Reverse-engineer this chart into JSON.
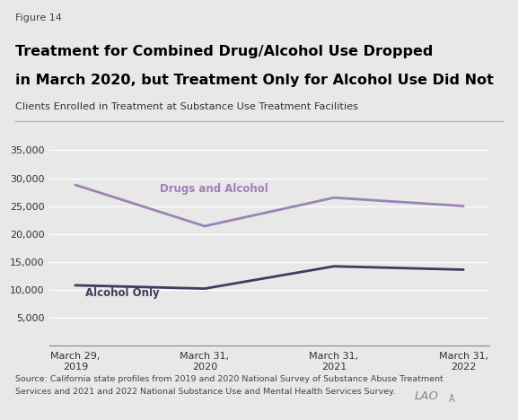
{
  "figure_label": "Figure 14",
  "title_line1": "Treatment for Combined Drug/Alcohol Use Dropped",
  "title_line2": "in March 2020, but Treatment Only for Alcohol Use Did Not",
  "subtitle": "Clients Enrolled in Treatment at Substance Use Treatment Facilities",
  "source_line1": "Source: California state profiles from 2019 and 2020 National Survey of Substance Abuse Treatment",
  "source_line2": "Services and 2021 and 2022 National Substance Use and Mental Health Services Survey.",
  "x_labels": [
    "March 29,\n2019",
    "March 31,\n2020",
    "March 31,\n2021",
    "March 31,\n2022"
  ],
  "drugs_and_alcohol": [
    28800,
    21400,
    26500,
    25000
  ],
  "alcohol_only": [
    10800,
    10200,
    14200,
    13600
  ],
  "drugs_color": "#9b82b8",
  "alcohol_color": "#3d3d5c",
  "bg_color": "#e8e8e8",
  "ylim": [
    0,
    37000
  ],
  "yticks": [
    5000,
    10000,
    15000,
    20000,
    25000,
    30000,
    35000
  ],
  "drugs_label": "Drugs and Alcohol",
  "alcohol_label": "Alcohol Only",
  "line_width": 2.0
}
